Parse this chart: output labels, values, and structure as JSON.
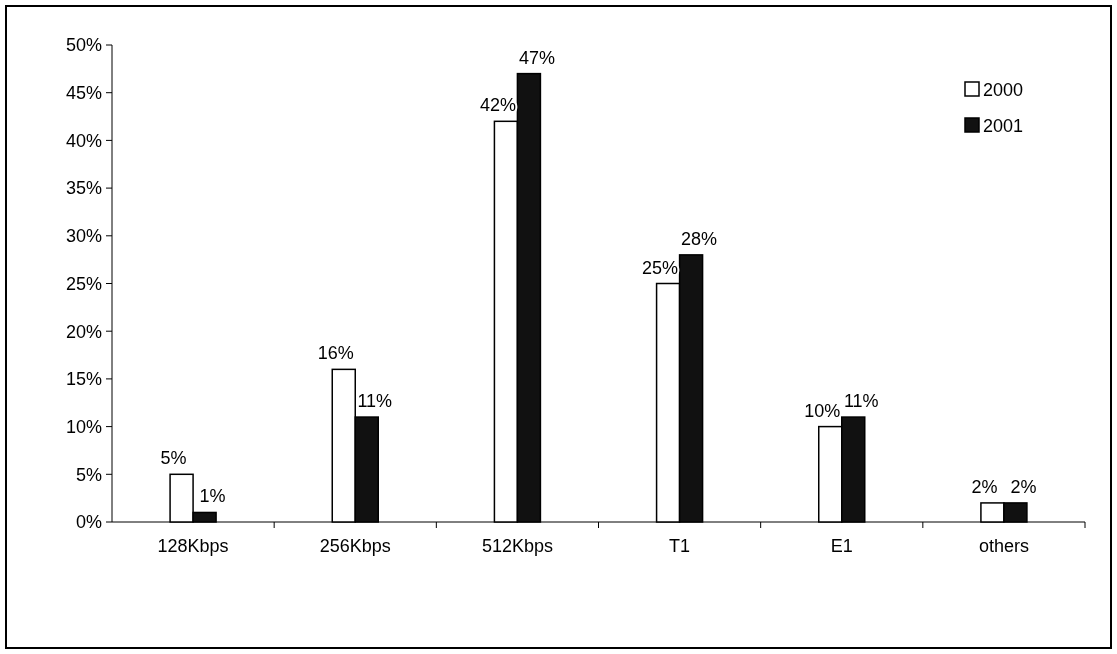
{
  "chart_data": {
    "type": "bar",
    "categories": [
      "128Kbps",
      "256Kbps",
      "512Kbps",
      "T1",
      "E1",
      "others"
    ],
    "series": [
      {
        "name": "2000",
        "color": "#ffffff",
        "values": [
          5,
          16,
          42,
          25,
          10,
          2
        ],
        "value_labels": [
          "5%",
          "16%",
          "42%",
          "25%",
          "10%",
          "2%"
        ]
      },
      {
        "name": "2001",
        "color": "#111111",
        "values": [
          1,
          11,
          47,
          28,
          11,
          2
        ],
        "value_labels": [
          "1%",
          "11%",
          "47%",
          "28%",
          "11%",
          "2%"
        ]
      }
    ],
    "ylim": [
      0,
      50
    ],
    "yticks": [
      {
        "value": 0,
        "label": "0%"
      },
      {
        "value": 5,
        "label": "5%"
      },
      {
        "value": 10,
        "label": "10%"
      },
      {
        "value": 15,
        "label": "15%"
      },
      {
        "value": 20,
        "label": "20%"
      },
      {
        "value": 25,
        "label": "25%"
      },
      {
        "value": 30,
        "label": "30%"
      },
      {
        "value": 35,
        "label": "35%"
      },
      {
        "value": 40,
        "label": "40%"
      },
      {
        "value": 45,
        "label": "45%"
      },
      {
        "value": 50,
        "label": "50%"
      }
    ],
    "grid": false,
    "legend": "top right"
  }
}
